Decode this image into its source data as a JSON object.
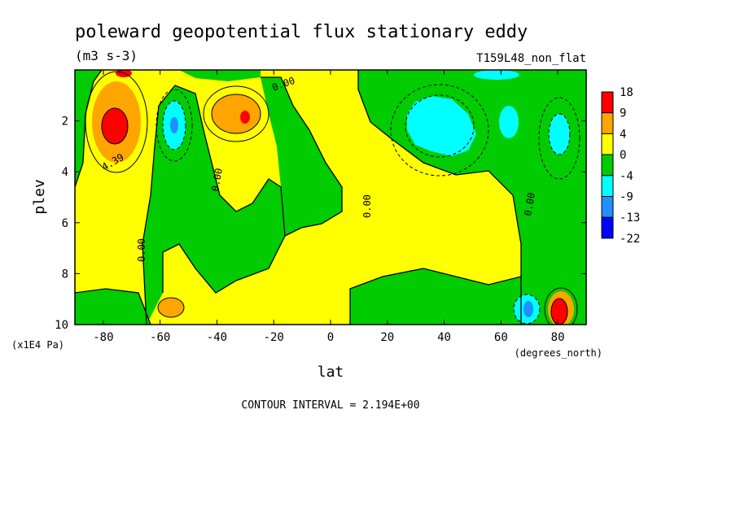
{
  "chart_data": {
    "type": "contour",
    "title": "poleward geopotential flux stationary eddy",
    "units": "(m3 s-3)",
    "run_label": "T159L48_non_flat",
    "xlabel": "lat",
    "x_units": "(degrees_north)",
    "ylabel": "plev",
    "y_units": "(x1E4 Pa)",
    "xlim": [
      -90,
      90
    ],
    "ylim": [
      0,
      10
    ],
    "y_inverted": true,
    "x_ticks": [
      "-80",
      "-60",
      "-40",
      "-20",
      "0",
      "20",
      "40",
      "60",
      "80"
    ],
    "x_tick_values": [
      -80,
      -60,
      -40,
      -20,
      0,
      20,
      40,
      60,
      80
    ],
    "y_ticks": [
      "2",
      "4",
      "6",
      "8",
      "10"
    ],
    "y_tick_values": [
      2,
      4,
      6,
      8,
      10
    ],
    "contour_interval": "CONTOUR INTERVAL = 2.194E+00",
    "contour_labels": [
      "4.39",
      "0.00",
      "0.00",
      "0.00",
      "0.00",
      "0.00"
    ],
    "colorbar": {
      "labels": [
        "18",
        "9",
        "4",
        "0",
        "-4",
        "-9",
        "-13",
        "-22"
      ],
      "colors": [
        "#ff0000",
        "#ffa500",
        "#ffff00",
        "#00cc00",
        "#00ffff",
        "#1e90ff",
        "#0000ff"
      ]
    },
    "regions": [
      {
        "sign": "positive",
        "level": "strong",
        "center_lat": -75,
        "center_plev": 2.3,
        "color": "#ff0000"
      },
      {
        "sign": "positive",
        "level": "strong",
        "center_lat": -30,
        "center_plev": 2.0,
        "color": "#ff0000"
      },
      {
        "sign": "negative",
        "level": "moderate",
        "center_lat": -55,
        "center_plev": 2.5,
        "color": "#00ffff"
      },
      {
        "sign": "negative",
        "level": "moderate",
        "center_lat": 38,
        "center_plev": 2.2,
        "color": "#00ffff"
      },
      {
        "sign": "negative",
        "level": "moderate",
        "center_lat": 80,
        "center_plev": 2.5,
        "color": "#00ffff"
      },
      {
        "sign": "positive",
        "level": "strong",
        "center_lat": 80,
        "center_plev": 9.4,
        "color": "#ff0000"
      },
      {
        "sign": "negative",
        "level": "moderate",
        "center_lat": 68,
        "center_plev": 9.4,
        "color": "#1e90ff"
      },
      {
        "sign": "positive",
        "level": "moderate",
        "center_lat": -57,
        "center_plev": 9.4,
        "color": "#ffa500"
      }
    ]
  }
}
